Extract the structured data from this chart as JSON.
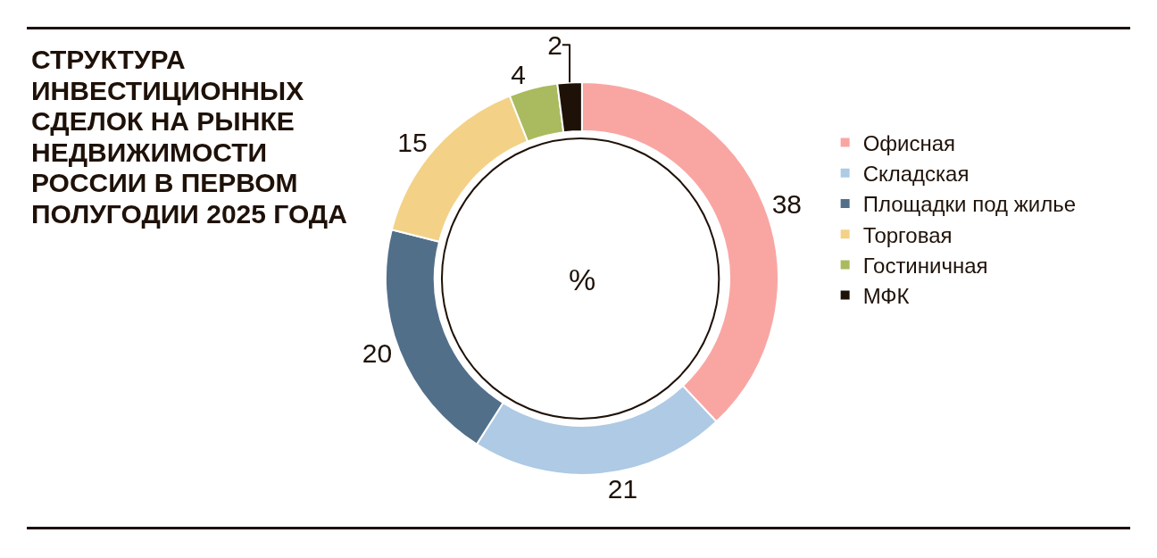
{
  "chart_data": {
    "type": "donut",
    "title": "СТРУКТУРА ИНВЕСТИЦИОННЫХ СДЕЛОК НА РЫНКЕ НЕДВИЖИМОСТИ РОССИИ В ПЕРВОМ ПОЛУГОДИИ 2025 ГОДА",
    "categories": [
      "Офисная",
      "Складская",
      "Площадки под жилье",
      "Торговая",
      "Гостиничная",
      "МФК"
    ],
    "values": [
      38,
      21,
      20,
      15,
      4,
      2
    ],
    "colors": [
      "#f9a6a3",
      "#aecae4",
      "#526f8a",
      "#f3d287",
      "#a9bb5e",
      "#1e1108"
    ],
    "data_labels": true,
    "legend": "right",
    "annotations": [
      "%"
    ]
  }
}
